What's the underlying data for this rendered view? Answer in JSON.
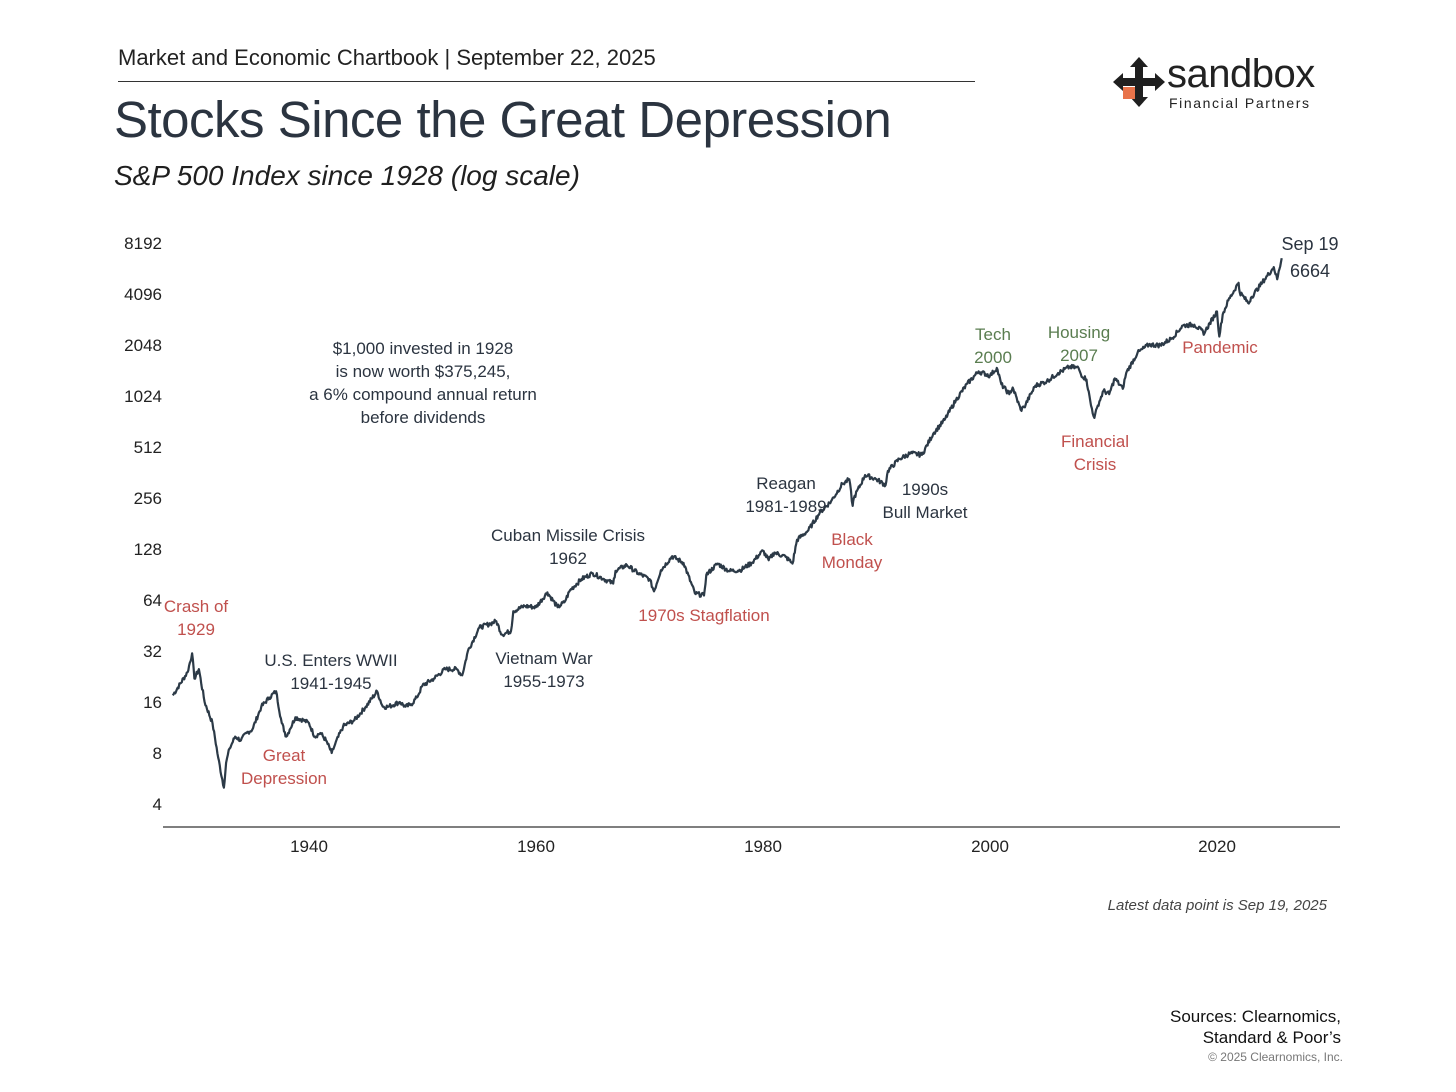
{
  "header": {
    "chartbook": "Market and Economic Chartbook | September 22, 2025",
    "title": "Stocks Since the Great Depression",
    "subtitle": "S&P 500 Index since 1928 (log scale)"
  },
  "logo": {
    "name": "sandbox",
    "tagline": "Financial Partners",
    "icon": "four-way-arrows-icon",
    "accent_color": "#e8734a"
  },
  "colors": {
    "line": "#2c3a47",
    "negative_annotation": "#c0504d",
    "positive_annotation": "#5a7d50",
    "neutral_annotation": "#2b3440",
    "axis": "#555555"
  },
  "chart_data": {
    "type": "line",
    "y_scale": "log2",
    "ylim": [
      4,
      8192
    ],
    "y_ticks": [
      4,
      8,
      16,
      32,
      64,
      128,
      256,
      512,
      1024,
      2048,
      4096,
      8192
    ],
    "y_tick_labels": [
      "4",
      "8",
      "16",
      "32",
      "64",
      "128",
      "256",
      "512",
      "1024",
      "2048",
      "4096",
      "8192"
    ],
    "xlim": [
      1928,
      2030
    ],
    "x_ticks": [
      1940,
      1960,
      1980,
      2000,
      2020
    ],
    "x_tick_labels": [
      "1940",
      "1960",
      "1980",
      "2000",
      "2020"
    ],
    "grid": false,
    "series": [
      {
        "x": [
          1928,
          1929.3,
          1929.7,
          1929.9,
          1930.3,
          1930.8,
          1931.5,
          1932.0,
          1932.5,
          1932.7,
          1933.0,
          1933.5,
          1934.0,
          1934.5,
          1935.0,
          1935.8,
          1936.5,
          1937.1,
          1937.6,
          1938.0,
          1938.3,
          1938.8,
          1939.5,
          1940.0,
          1940.5,
          1941.0,
          1941.5,
          1942.0,
          1942.3,
          1943.0,
          1944.0,
          1945.0,
          1946.0,
          1946.5,
          1947.0,
          1948.0,
          1948.5,
          1949.0,
          1949.5,
          1950.0,
          1951.0,
          1952.0,
          1953.0,
          1953.5,
          1954.0,
          1955.0,
          1956.0,
          1956.5,
          1957.0,
          1957.8,
          1958.0,
          1959.0,
          1960.0,
          1961.0,
          1961.9,
          1962.5,
          1963.0,
          1964.0,
          1965.0,
          1966.0,
          1966.8,
          1967.0,
          1968.0,
          1969.0,
          1970.0,
          1970.4,
          1971.0,
          1972.0,
          1973.0,
          1974.0,
          1974.8,
          1975.0,
          1976.0,
          1977.0,
          1978.0,
          1979.0,
          1980.0,
          1980.5,
          1981.0,
          1982.0,
          1982.6,
          1983.0,
          1984.0,
          1985.0,
          1986.0,
          1987.0,
          1987.6,
          1987.9,
          1988.0,
          1989.0,
          1990.0,
          1990.8,
          1991.0,
          1992.0,
          1993.0,
          1994.0,
          1995.0,
          1996.0,
          1997.0,
          1998.0,
          1999.0,
          2000.0,
          2000.6,
          2001.0,
          2001.7,
          2002.0,
          2002.7,
          2003.0,
          2004.0,
          2005.0,
          2006.0,
          2007.0,
          2007.8,
          2008.0,
          2008.5,
          2008.9,
          2009.2,
          2009.5,
          2010.0,
          2010.5,
          2011.0,
          2011.7,
          2012.0,
          2013.0,
          2014.0,
          2015.0,
          2016.0,
          2017.0,
          2018.0,
          2018.9,
          2019.0,
          2020.0,
          2020.2,
          2020.5,
          2021.0,
          2021.9,
          2022.0,
          2022.8,
          2023.0,
          2024.0,
          2025.0,
          2025.3,
          2025.7
        ],
        "y": [
          17.5,
          24,
          31,
          22,
          25,
          16,
          12,
          7.5,
          5,
          7,
          8.5,
          10,
          9.5,
          10.5,
          11,
          15,
          17,
          18.5,
          12,
          10,
          11,
          13,
          12.5,
          12,
          10,
          10.5,
          9.5,
          8,
          9,
          11.5,
          12.5,
          15,
          18.5,
          15,
          15,
          16,
          15,
          15.5,
          17,
          20,
          22,
          25,
          25,
          23,
          32,
          44,
          46.5,
          48,
          40,
          42,
          55,
          59,
          58,
          71,
          58,
          62,
          73,
          85,
          92,
          85,
          80,
          95,
          103,
          92,
          85,
          72,
          96,
          116,
          106,
          70,
          68,
          90,
          105,
          95,
          96,
          106,
          125,
          110,
          122,
          115,
          105,
          145,
          165,
          210,
          245,
          310,
          330,
          230,
          255,
          350,
          330,
          305,
          370,
          435,
          470,
          460,
          615,
          740,
          970,
          1210,
          1430,
          1350,
          1500,
          1200,
          1050,
          1150,
          850,
          880,
          1180,
          1250,
          1400,
          1520,
          1500,
          1380,
          1280,
          900,
          760,
          900,
          1100,
          1050,
          1300,
          1130,
          1400,
          1840,
          2060,
          2040,
          2240,
          2670,
          2700,
          2400,
          2500,
          3230,
          2300,
          3100,
          3750,
          4770,
          4200,
          3600,
          3900,
          4800,
          5900,
          5000,
          6664
        ]
      }
    ],
    "annotations": [
      {
        "id": "crash-1929",
        "lines": [
          "Crash of",
          "1929"
        ],
        "tone": "negative"
      },
      {
        "id": "great-depression",
        "lines": [
          "Great",
          "Depression"
        ],
        "tone": "negative"
      },
      {
        "id": "wwii",
        "lines": [
          "U.S. Enters WWII",
          "1941-1945"
        ],
        "tone": "neutral"
      },
      {
        "id": "invested-note",
        "lines": [
          "$1,000 invested in 1928",
          "is now worth $375,245,",
          "a 6% compound annual return",
          "before dividends"
        ],
        "tone": "neutral"
      },
      {
        "id": "vietnam",
        "lines": [
          "Vietnam War",
          "1955-1973"
        ],
        "tone": "neutral"
      },
      {
        "id": "cuban-missile",
        "lines": [
          "Cuban Missile Crisis",
          "1962"
        ],
        "tone": "neutral"
      },
      {
        "id": "stagflation",
        "lines": [
          "1970s Stagflation"
        ],
        "tone": "negative"
      },
      {
        "id": "reagan",
        "lines": [
          "Reagan",
          "1981-1989"
        ],
        "tone": "neutral"
      },
      {
        "id": "black-monday",
        "lines": [
          "Black",
          "Monday"
        ],
        "tone": "negative"
      },
      {
        "id": "bull-market-1990s",
        "lines": [
          "1990s",
          "Bull Market"
        ],
        "tone": "neutral"
      },
      {
        "id": "tech-2000",
        "lines": [
          "Tech",
          "2000"
        ],
        "tone": "positive"
      },
      {
        "id": "housing-2007",
        "lines": [
          "Housing",
          "2007"
        ],
        "tone": "positive"
      },
      {
        "id": "financial-crisis",
        "lines": [
          "Financial",
          "Crisis"
        ],
        "tone": "negative"
      },
      {
        "id": "pandemic",
        "lines": [
          "Pandemic"
        ],
        "tone": "negative"
      },
      {
        "id": "latest-label",
        "lines": [
          "Sep 19",
          "6664"
        ],
        "tone": "neutral"
      }
    ]
  },
  "footer": {
    "latest_note": "Latest data point is Sep 19, 2025",
    "sources_line1": "Sources: Clearnomics,",
    "sources_line2": "Standard & Poor’s",
    "copyright": "© 2025 Clearnomics, Inc."
  }
}
